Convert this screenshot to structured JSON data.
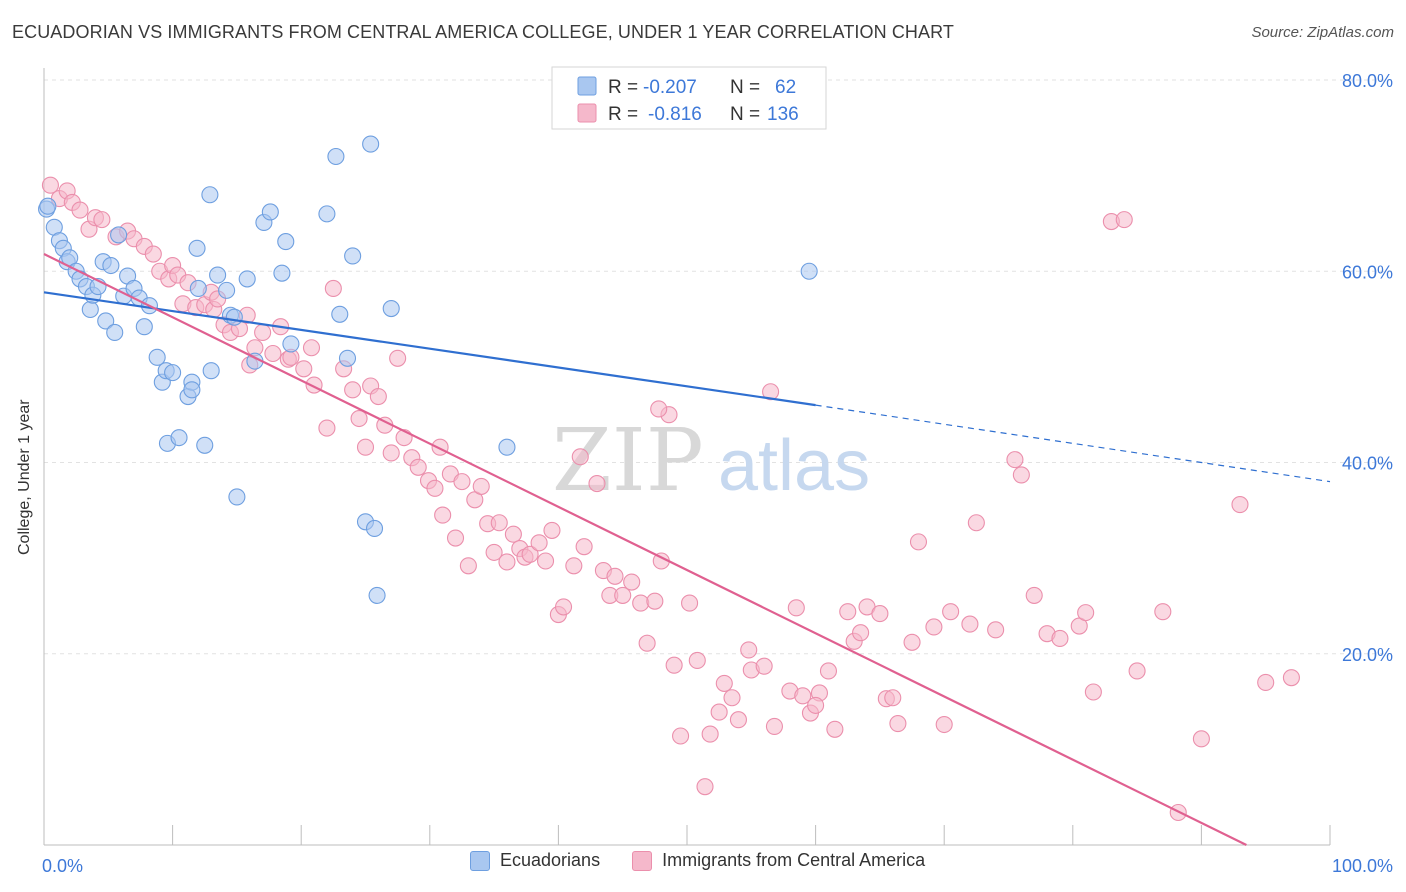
{
  "title": "ECUADORIAN VS IMMIGRANTS FROM CENTRAL AMERICA COLLEGE, UNDER 1 YEAR CORRELATION CHART",
  "source": "Source: ZipAtlas.com",
  "watermark": {
    "zip": "ZIP",
    "atlas": "atlas"
  },
  "colors": {
    "blue_fill": "#a9c7f0",
    "blue_stroke": "#6e9fe0",
    "blue_line": "#2f6fd0",
    "pink_fill": "#f5b8cb",
    "pink_stroke": "#eb8fac",
    "pink_line": "#e06090",
    "axis_text": "#3d78d8",
    "grid": "#e2e2e2"
  },
  "legend_top": {
    "rows": [
      {
        "r_label": "R =",
        "r_value": "-0.207",
        "n_label": "N =",
        "n_value": "62"
      },
      {
        "r_label": "R =",
        "r_value": "-0.816",
        "n_label": "N =",
        "n_value": "136"
      }
    ]
  },
  "chart_data": {
    "type": "scatter",
    "title": "ECUADORIAN VS IMMIGRANTS FROM CENTRAL AMERICA COLLEGE, UNDER 1 YEAR CORRELATION CHART",
    "xlabel": "",
    "ylabel": "College, Under 1 year",
    "xlim": [
      0,
      100
    ],
    "ylim": [
      0,
      80
    ],
    "x_tick_labels": [
      "0.0%",
      "100.0%"
    ],
    "y_tick_labels": [
      "20.0%",
      "40.0%",
      "60.0%",
      "80.0%"
    ],
    "y_ticks": [
      20,
      40,
      60,
      80
    ],
    "grid": true,
    "legend_placement": "bottom",
    "series": [
      {
        "name": "Ecuadorians",
        "color": "#a9c7f0",
        "trend": {
          "x0": 0,
          "y0": 57.8,
          "x1": 60,
          "y1": 46.0,
          "dash_to_x": 100,
          "dash_to_y": 38.0
        },
        "points": [
          [
            0.2,
            66.5
          ],
          [
            0.3,
            66.8
          ],
          [
            0.8,
            64.6
          ],
          [
            1.2,
            63.2
          ],
          [
            1.5,
            62.4
          ],
          [
            1.8,
            61.0
          ],
          [
            2.0,
            61.4
          ],
          [
            2.5,
            60.0
          ],
          [
            2.8,
            59.2
          ],
          [
            3.3,
            58.4
          ],
          [
            3.6,
            56.0
          ],
          [
            3.8,
            57.5
          ],
          [
            4.2,
            58.4
          ],
          [
            4.6,
            61.0
          ],
          [
            4.8,
            54.8
          ],
          [
            5.2,
            60.6
          ],
          [
            5.5,
            53.6
          ],
          [
            5.8,
            63.8
          ],
          [
            6.2,
            57.4
          ],
          [
            6.5,
            59.5
          ],
          [
            7.0,
            58.2
          ],
          [
            7.4,
            57.2
          ],
          [
            7.8,
            54.2
          ],
          [
            8.2,
            56.4
          ],
          [
            8.8,
            51.0
          ],
          [
            9.2,
            48.4
          ],
          [
            9.5,
            49.6
          ],
          [
            9.6,
            42.0
          ],
          [
            10.0,
            49.4
          ],
          [
            10.5,
            42.6
          ],
          [
            11.2,
            46.9
          ],
          [
            11.5,
            48.4
          ],
          [
            11.9,
            62.4
          ],
          [
            12.0,
            58.2
          ],
          [
            12.5,
            41.8
          ],
          [
            13.0,
            49.6
          ],
          [
            13.5,
            59.6
          ],
          [
            12.9,
            68.0
          ],
          [
            14.2,
            58.0
          ],
          [
            14.5,
            55.4
          ],
          [
            14.8,
            55.2
          ],
          [
            15.8,
            59.2
          ],
          [
            16.4,
            50.6
          ],
          [
            17.1,
            65.1
          ],
          [
            17.6,
            66.2
          ],
          [
            18.5,
            59.8
          ],
          [
            18.8,
            63.1
          ],
          [
            19.2,
            52.4
          ],
          [
            22.0,
            66.0
          ],
          [
            23.0,
            55.5
          ],
          [
            22.7,
            72.0
          ],
          [
            24.0,
            61.6
          ],
          [
            25.0,
            33.8
          ],
          [
            25.4,
            73.3
          ],
          [
            25.7,
            33.1
          ],
          [
            25.9,
            26.1
          ],
          [
            23.6,
            50.9
          ],
          [
            27.0,
            56.1
          ],
          [
            11.5,
            47.6
          ],
          [
            15.0,
            36.4
          ],
          [
            59.5,
            60.0
          ],
          [
            36.0,
            41.6
          ]
        ]
      },
      {
        "name": "Immigrants from Central America",
        "color": "#f5b8cb",
        "trend": {
          "x0": 0,
          "y0": 61.8,
          "x1": 93.5,
          "y1": 0.0
        },
        "points": [
          [
            0.5,
            69.0
          ],
          [
            1.2,
            67.6
          ],
          [
            1.8,
            68.4
          ],
          [
            2.2,
            67.2
          ],
          [
            2.8,
            66.4
          ],
          [
            3.5,
            64.4
          ],
          [
            4.0,
            65.6
          ],
          [
            4.5,
            65.4
          ],
          [
            5.6,
            63.6
          ],
          [
            6.5,
            64.2
          ],
          [
            7.0,
            63.4
          ],
          [
            7.8,
            62.6
          ],
          [
            8.5,
            61.8
          ],
          [
            9.0,
            60.0
          ],
          [
            9.7,
            59.2
          ],
          [
            10.0,
            60.6
          ],
          [
            10.4,
            59.6
          ],
          [
            10.8,
            56.6
          ],
          [
            11.2,
            58.8
          ],
          [
            11.8,
            56.2
          ],
          [
            12.5,
            56.5
          ],
          [
            13.0,
            57.8
          ],
          [
            13.2,
            56.0
          ],
          [
            13.5,
            57.1
          ],
          [
            14.0,
            54.4
          ],
          [
            14.5,
            53.6
          ],
          [
            15.2,
            54.0
          ],
          [
            15.8,
            55.4
          ],
          [
            16.0,
            50.2
          ],
          [
            16.4,
            52.0
          ],
          [
            17.0,
            53.6
          ],
          [
            17.8,
            51.4
          ],
          [
            18.4,
            54.2
          ],
          [
            19.0,
            50.8
          ],
          [
            19.2,
            51.0
          ],
          [
            20.2,
            49.8
          ],
          [
            20.8,
            52.0
          ],
          [
            21.0,
            48.1
          ],
          [
            22.0,
            43.6
          ],
          [
            22.5,
            58.2
          ],
          [
            23.3,
            49.8
          ],
          [
            24.0,
            47.6
          ],
          [
            24.5,
            44.6
          ],
          [
            25.0,
            41.6
          ],
          [
            25.4,
            48.0
          ],
          [
            26.0,
            46.9
          ],
          [
            26.5,
            43.9
          ],
          [
            27.0,
            41.0
          ],
          [
            27.5,
            50.9
          ],
          [
            28.0,
            42.6
          ],
          [
            28.6,
            40.5
          ],
          [
            29.1,
            39.5
          ],
          [
            29.9,
            38.1
          ],
          [
            30.4,
            37.3
          ],
          [
            30.8,
            41.6
          ],
          [
            31.0,
            34.5
          ],
          [
            31.6,
            38.8
          ],
          [
            32.0,
            32.1
          ],
          [
            32.5,
            38.0
          ],
          [
            33.0,
            29.2
          ],
          [
            33.5,
            36.1
          ],
          [
            34.0,
            37.5
          ],
          [
            34.5,
            33.6
          ],
          [
            35.0,
            30.6
          ],
          [
            35.4,
            33.7
          ],
          [
            36.0,
            29.6
          ],
          [
            36.5,
            32.5
          ],
          [
            37.0,
            31.0
          ],
          [
            37.4,
            30.1
          ],
          [
            37.8,
            30.4
          ],
          [
            38.5,
            31.6
          ],
          [
            39.0,
            29.7
          ],
          [
            39.5,
            32.9
          ],
          [
            40.0,
            24.1
          ],
          [
            40.4,
            24.9
          ],
          [
            41.2,
            29.2
          ],
          [
            41.7,
            40.6
          ],
          [
            42.0,
            31.2
          ],
          [
            43.0,
            37.8
          ],
          [
            43.5,
            28.7
          ],
          [
            44.0,
            26.1
          ],
          [
            44.4,
            28.1
          ],
          [
            45.0,
            26.1
          ],
          [
            45.7,
            27.5
          ],
          [
            46.4,
            25.3
          ],
          [
            46.9,
            21.1
          ],
          [
            47.5,
            25.5
          ],
          [
            48.0,
            29.7
          ],
          [
            48.6,
            45.0
          ],
          [
            49.0,
            18.8
          ],
          [
            49.5,
            11.4
          ],
          [
            50.2,
            25.3
          ],
          [
            50.8,
            19.3
          ],
          [
            51.4,
            6.1
          ],
          [
            51.8,
            11.6
          ],
          [
            52.5,
            13.9
          ],
          [
            52.9,
            16.9
          ],
          [
            53.5,
            15.4
          ],
          [
            54.0,
            13.1
          ],
          [
            54.8,
            20.4
          ],
          [
            55.0,
            18.3
          ],
          [
            56.0,
            18.7
          ],
          [
            56.5,
            47.4
          ],
          [
            56.8,
            12.4
          ],
          [
            58.0,
            16.1
          ],
          [
            58.5,
            24.8
          ],
          [
            59.0,
            15.6
          ],
          [
            59.6,
            13.8
          ],
          [
            60.3,
            15.9
          ],
          [
            60.0,
            14.6
          ],
          [
            61.0,
            18.2
          ],
          [
            61.5,
            12.1
          ],
          [
            62.5,
            24.4
          ],
          [
            63.0,
            21.3
          ],
          [
            63.5,
            22.2
          ],
          [
            64.0,
            24.9
          ],
          [
            65.0,
            24.2
          ],
          [
            65.5,
            15.3
          ],
          [
            66.0,
            15.4
          ],
          [
            66.4,
            12.7
          ],
          [
            67.5,
            21.2
          ],
          [
            68.0,
            31.7
          ],
          [
            69.2,
            22.8
          ],
          [
            70.0,
            12.6
          ],
          [
            70.5,
            24.4
          ],
          [
            72.0,
            23.1
          ],
          [
            72.5,
            33.7
          ],
          [
            74.0,
            22.5
          ],
          [
            75.5,
            40.3
          ],
          [
            76.0,
            38.7
          ],
          [
            77.0,
            26.1
          ],
          [
            78.0,
            22.1
          ],
          [
            79.0,
            21.6
          ],
          [
            80.5,
            22.9
          ],
          [
            81.0,
            24.3
          ],
          [
            81.6,
            16.0
          ],
          [
            83.0,
            65.2
          ],
          [
            84.0,
            65.4
          ],
          [
            85.0,
            18.2
          ],
          [
            87.0,
            24.4
          ],
          [
            88.2,
            3.4
          ],
          [
            90.0,
            11.1
          ],
          [
            93.0,
            35.6
          ],
          [
            95.0,
            17.0
          ],
          [
            97.0,
            17.5
          ],
          [
            47.8,
            45.6
          ]
        ]
      }
    ]
  }
}
